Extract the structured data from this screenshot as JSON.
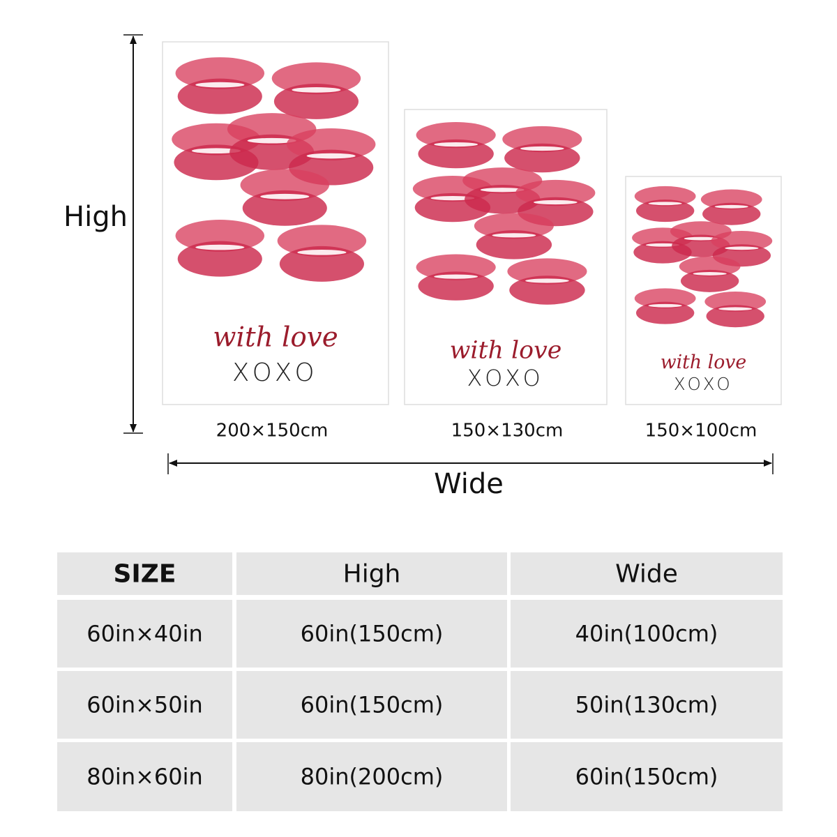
{
  "dimension_labels": {
    "height": "High",
    "width": "Wide"
  },
  "posters": [
    {
      "script": "with love",
      "sign": "XOXO",
      "size_label": "200×150cm"
    },
    {
      "script": "with love",
      "sign": "XOXO",
      "size_label": "150×130cm"
    },
    {
      "script": "with love",
      "sign": "XOXO",
      "size_label": "150×100cm"
    }
  ],
  "table": {
    "header": [
      "SIZE",
      "High",
      "Wide"
    ],
    "rows": [
      [
        "60in×40in",
        "60in(150cm)",
        "40in(100cm)"
      ],
      [
        "60in×50in",
        "60in(150cm)",
        "50in(130cm)"
      ],
      [
        "80in×60in",
        "80in(200cm)",
        "60in(150cm)"
      ]
    ]
  }
}
